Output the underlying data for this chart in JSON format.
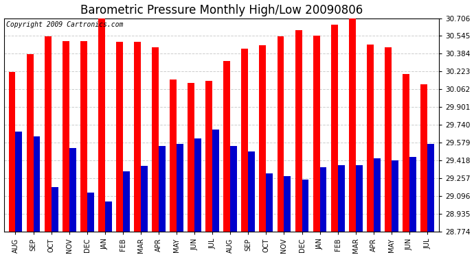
{
  "title": "Barometric Pressure Monthly High/Low 20090806",
  "copyright": "Copyright 2009 Cartronics.com",
  "categories": [
    "AUG",
    "SEP",
    "OCT",
    "NOV",
    "DEC",
    "JAN",
    "FEB",
    "MAR",
    "APR",
    "MAY",
    "JUN",
    "JUL",
    "AUG",
    "SEP",
    "OCT",
    "NOV",
    "DEC",
    "JAN",
    "FEB",
    "MAR",
    "APR",
    "MAY",
    "JUN",
    "JUL"
  ],
  "highs": [
    30.22,
    30.38,
    30.54,
    30.5,
    30.5,
    30.74,
    30.49,
    30.49,
    30.44,
    30.15,
    30.12,
    30.14,
    30.32,
    30.43,
    30.46,
    30.54,
    30.6,
    30.55,
    30.65,
    30.74,
    30.47,
    30.44,
    30.2,
    30.11
  ],
  "lows": [
    29.68,
    29.64,
    29.18,
    29.53,
    29.13,
    29.05,
    29.32,
    29.37,
    29.55,
    29.57,
    29.62,
    29.7,
    29.55,
    29.5,
    29.3,
    29.28,
    29.25,
    29.36,
    29.38,
    29.38,
    29.44,
    29.42,
    29.45,
    29.57
  ],
  "bar_high_color": "#ff0000",
  "bar_low_color": "#0000cc",
  "background_color": "#ffffff",
  "plot_bg_color": "#ffffff",
  "grid_color": "#cccccc",
  "title_fontsize": 12,
  "copyright_fontsize": 7,
  "yticks": [
    28.774,
    28.935,
    29.096,
    29.257,
    29.418,
    29.579,
    29.74,
    29.901,
    30.062,
    30.223,
    30.384,
    30.545,
    30.706
  ],
  "ymin": 28.774,
  "ymax": 30.706
}
